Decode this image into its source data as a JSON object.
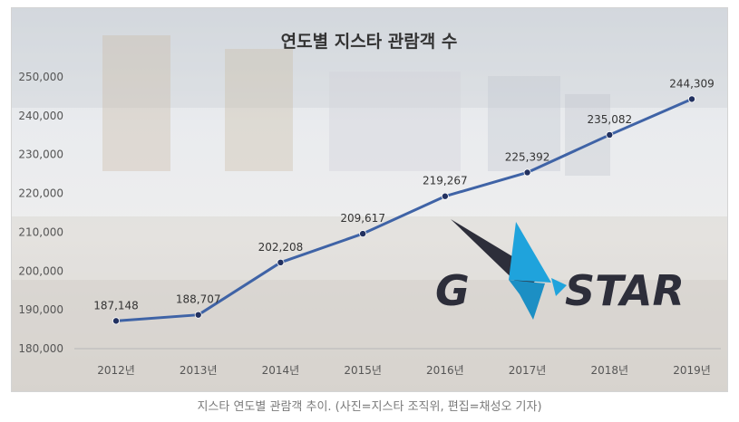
{
  "caption": "지스타 연도별 관람객 추이. (사진=지스타 조직위, 편집=채성오 기자)",
  "logo": {
    "text": "G STAR",
    "colors": [
      "#2d2e3a",
      "#1fa3dc"
    ]
  },
  "colors": {
    "line": "#3f63a6",
    "marker": "#223160",
    "axis_text": "#555555",
    "title": "#333333"
  },
  "chart_data": {
    "type": "line",
    "title": "연도별 지스타 관람객 수",
    "categories": [
      "2012년",
      "2013년",
      "2014년",
      "2015년",
      "2016년",
      "2017년",
      "2018년",
      "2019년"
    ],
    "series": [
      {
        "values": [
          187148,
          188707,
          202208,
          209617,
          219267,
          225392,
          235082,
          244309
        ]
      }
    ],
    "data_labels": [
      "187,148",
      "188,707",
      "202,208",
      "209,617",
      "219,267",
      "225,392",
      "235,082",
      "244,309"
    ],
    "yticks": [
      180000,
      190000,
      200000,
      210000,
      220000,
      230000,
      240000,
      250000
    ],
    "ytick_labels": [
      "180,000",
      "190,000",
      "200,000",
      "210,000",
      "220,000",
      "230,000",
      "240,000",
      "250,000"
    ],
    "ylim": [
      180000,
      250000
    ],
    "xlabel": "",
    "ylabel": "",
    "grid": false,
    "legend": "none"
  }
}
